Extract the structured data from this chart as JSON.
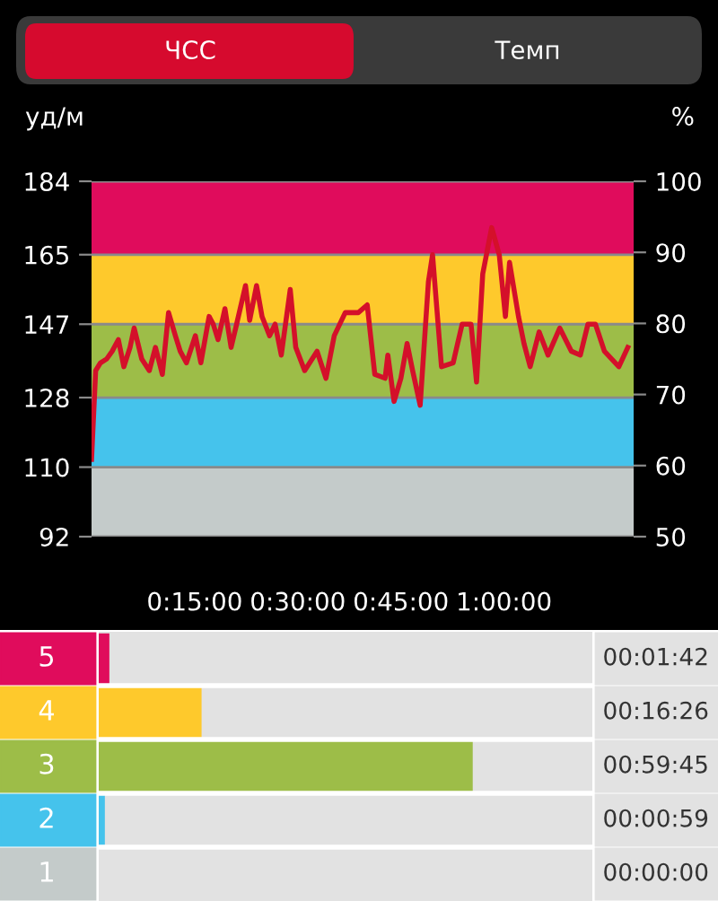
{
  "chart_data": [
    {
      "type": "line",
      "annotations": [
        "ЧСС",
        "Темп"
      ],
      "ylabel": "уд/м",
      "y2label": "%",
      "x": [
        0,
        0.6,
        1.3,
        2.2,
        3.0,
        3.9,
        4.7,
        5.6,
        6.2,
        7.3,
        8.4,
        9.3,
        10.3,
        11.2,
        12.2,
        12.9,
        13.8,
        15.1,
        15.9,
        17.1,
        17.7,
        18.4,
        19.4,
        20.3,
        21.1,
        22.4,
        23.0,
        24.0,
        24.8,
        25.9,
        26.7,
        27.6,
        28.9,
        29.7,
        31.0,
        32.8,
        34.1,
        35.3,
        36.9,
        38.8,
        40.1,
        41.2,
        42.7,
        43.1,
        44.0,
        45.0,
        45.9,
        46.7,
        47.8,
        49.0,
        49.6,
        50.9,
        52.6,
        53.9,
        55.2,
        56.0,
        56.9,
        58.2,
        59.3,
        60.2,
        60.8,
        62.1,
        62.9,
        63.8,
        65.1,
        66.4,
        68.1,
        69.8,
        71.1,
        72.2,
        73.3,
        74.6,
        76.7,
        78.0
      ],
      "series": [
        {
          "color": "#d4102a",
          "values": [
            112,
            135,
            137,
            138,
            140,
            143,
            136,
            141,
            146,
            138,
            135,
            141,
            134,
            150,
            144,
            140,
            137,
            144,
            137,
            149,
            147,
            143,
            151,
            141,
            147,
            157,
            148,
            157,
            149,
            144,
            147,
            139,
            156,
            141,
            135,
            140,
            133,
            144,
            150,
            150,
            152,
            134,
            133,
            139,
            127,
            133,
            142,
            135,
            126,
            158,
            165,
            136,
            137,
            147,
            147,
            132,
            160,
            172,
            165,
            149,
            163,
            149,
            142,
            136,
            145,
            139,
            146,
            140,
            139,
            147,
            147,
            140,
            136,
            141
          ]
        }
      ],
      "xlim": [
        0,
        78.85
      ],
      "xticks": [
        {
          "value": 15,
          "label": "0:15:00"
        },
        {
          "value": 30,
          "label": "0:30:00"
        },
        {
          "value": 45,
          "label": "0:45:00"
        },
        {
          "value": 60,
          "label": "1:00:00"
        }
      ],
      "ylim": [
        92,
        184
      ],
      "yticks": [
        92,
        110,
        128,
        147,
        165,
        184
      ],
      "y2lim": [
        50,
        100
      ],
      "y2ticks": [
        50,
        60,
        70,
        80,
        90,
        100
      ],
      "bands": [
        {
          "axis": "y",
          "from": 92,
          "to": 110,
          "color": "#c4cbca"
        },
        {
          "axis": "y",
          "from": 110,
          "to": 128,
          "color": "#45c3ec"
        },
        {
          "axis": "y",
          "from": 128,
          "to": 147,
          "color": "#9dbd48"
        },
        {
          "axis": "y",
          "from": 147,
          "to": 165,
          "color": "#fec92c"
        },
        {
          "axis": "y",
          "from": 165,
          "to": 184,
          "color": "#e00c5c"
        }
      ],
      "grid": "y",
      "legend": false,
      "marker": "none",
      "line_style": "solid"
    },
    {
      "type": "bar",
      "orientation": "horizontal",
      "categories": [
        "5",
        "4",
        "3",
        "2",
        "1"
      ],
      "values": [
        1.7,
        16.43,
        59.75,
        0.98,
        0
      ],
      "colors": [
        "#e00c5c",
        "#fec92c",
        "#9dbd48",
        "#45c3ec",
        "#c4cbca"
      ],
      "value_labels": [
        "00:01:42",
        "00:16:26",
        "00:59:45",
        "00:00:59",
        "00:00:00"
      ]
    }
  ]
}
